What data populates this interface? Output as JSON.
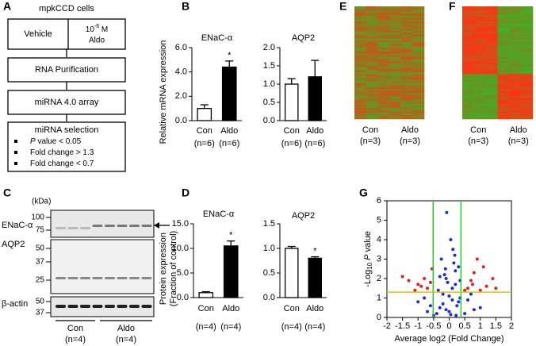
{
  "panels": [
    "A",
    "B",
    "C",
    "D",
    "E",
    "F",
    "G"
  ],
  "flowchart": {
    "title": "mpkCCD cells",
    "left": "Vehicle",
    "right_base": "10",
    "right_exp": "-6",
    "right_unit": " M",
    "right_line2": "Aldo",
    "step2": "RNA Purification",
    "step3": "miRNA 4.0 array",
    "step4": "miRNA selection",
    "bullets": [
      {
        "italic": "P",
        "text": " value < 0.05"
      },
      {
        "text": "Fold change > 1.3"
      },
      {
        "text": "Fold change < 0.7"
      }
    ]
  },
  "blot": {
    "unit": "(kDa)",
    "proteins": [
      "ENaC-α",
      "AQP2",
      "β-actin"
    ],
    "markers": [
      [
        "100",
        "75"
      ],
      [
        "50",
        "37",
        "25"
      ],
      [
        "50",
        "37"
      ]
    ],
    "groups": [
      "Con",
      "Aldo"
    ],
    "n_labels": [
      "(n=4)",
      "(n=4)"
    ]
  },
  "heatmaps": [
    {
      "categories": [
        "Con",
        "Aldo"
      ],
      "n_labels": [
        "(n=3)",
        "(n=3)"
      ]
    },
    {
      "categories": [
        "Con",
        "Aldo"
      ],
      "n_labels": [
        "(n=3)",
        "(n=3)"
      ]
    }
  ],
  "chart_data": [
    {
      "type": "bar",
      "title": "ENaC-α",
      "ylabel": "Relative mRNA expression",
      "categories": [
        "Con",
        "Aldo"
      ],
      "n_labels": [
        "(n=6)",
        "(n=6)"
      ],
      "values": [
        1.0,
        4.4
      ],
      "errors": [
        0.3,
        0.5
      ],
      "colors": [
        "#ffffff",
        "#000000"
      ],
      "significance": [
        {
          "index": 1,
          "label": "*"
        }
      ],
      "ylim": [
        0,
        6
      ],
      "yticks": [
        {
          "value": 0,
          "label": "0.0"
        },
        {
          "value": 2,
          "label": "2.0"
        },
        {
          "value": 4,
          "label": "4.0"
        },
        {
          "value": 6,
          "label": "6.0"
        }
      ]
    },
    {
      "type": "bar",
      "title": "AQP2",
      "categories": [
        "Con",
        "Aldo"
      ],
      "n_labels": [
        "(n=6)",
        "(n=6)"
      ],
      "values": [
        1.0,
        1.2
      ],
      "errors": [
        0.15,
        0.45
      ],
      "colors": [
        "#ffffff",
        "#000000"
      ],
      "ylim": [
        0,
        2
      ],
      "yticks": [
        {
          "value": 0,
          "label": "0.0"
        },
        {
          "value": 0.5,
          "label": "0.5"
        },
        {
          "value": 1,
          "label": "1.0"
        },
        {
          "value": 1.5,
          "label": "1.5"
        },
        {
          "value": 2,
          "label": "2.0"
        }
      ]
    },
    {
      "type": "bar",
      "title": "ENaC-α",
      "ylabel": "Protein expression",
      "ylabel_line2": "(Fraction of control)",
      "categories": [
        "Con",
        "Aldo"
      ],
      "n_labels": [
        "(n=4)",
        "(n=4)"
      ],
      "values": [
        1.0,
        10.5
      ],
      "errors": [
        0.2,
        1.0
      ],
      "colors": [
        "#ffffff",
        "#000000"
      ],
      "significance": [
        {
          "index": 1,
          "label": "*"
        }
      ],
      "ylim": [
        0,
        15
      ],
      "yticks": [
        {
          "value": 0,
          "label": "0.0"
        },
        {
          "value": 5,
          "label": "5.0"
        },
        {
          "value": 10,
          "label": "10.0"
        },
        {
          "value": 15,
          "label": "15.0"
        }
      ]
    },
    {
      "type": "bar",
      "title": "AQP2",
      "categories": [
        "Con",
        "Aldo"
      ],
      "n_labels": [
        "(n=4)",
        "(n=4)"
      ],
      "values": [
        1.0,
        0.8
      ],
      "errors": [
        0.04,
        0.03
      ],
      "colors": [
        "#ffffff",
        "#000000"
      ],
      "significance": [
        {
          "index": 1,
          "label": "*"
        }
      ],
      "ylim": [
        0,
        1.5
      ],
      "yticks": [
        {
          "value": 0,
          "label": "0.0"
        },
        {
          "value": 0.5,
          "label": "0.5"
        },
        {
          "value": 1,
          "label": "1.0"
        },
        {
          "value": 1.5,
          "label": "1.5"
        }
      ]
    },
    {
      "type": "scatter",
      "xlabel": "Average log2 (Fold Change)",
      "ylabel": {
        "prefix": "-Log",
        "sub": "10",
        "italic": "P",
        "suffix": " value"
      },
      "xlim": [
        -2,
        2
      ],
      "xticks": [
        -2,
        -1.5,
        -1,
        -0.5,
        0,
        0.5,
        1,
        1.5,
        2
      ],
      "ylim": [
        0,
        6
      ],
      "yticks": [
        0,
        1,
        2,
        3,
        4,
        5,
        6
      ],
      "vlines": [
        -0.515,
        0.379
      ],
      "vline_color": "#22cc22",
      "hline": 1.301,
      "hline_color": "#e0c000",
      "series": [
        {
          "color": "#1a2fcc",
          "x": [
            -0.3,
            -0.2,
            -0.1,
            0,
            0.1,
            0.2,
            0.3,
            -0.25,
            0.15,
            0.05,
            -0.05,
            0.25,
            -0.15,
            0.35,
            -0.35,
            0.1,
            -0.1,
            0.2,
            -0.2,
            0,
            0.3,
            -0.3,
            0.12,
            -0.12,
            0.35,
            -0.4,
            0.6,
            -0.6,
            0.8,
            -0.8,
            0.7,
            -0.7,
            1.0,
            -1.0,
            0.5,
            -0.5,
            0.05,
            -0.08,
            0.18,
            0.22
          ],
          "values": [
            0.5,
            1.2,
            2.0,
            0.3,
            1.5,
            2.4,
            0.8,
            3.0,
            2.8,
            4.0,
            1.8,
            0.6,
            2.2,
            1.0,
            1.4,
            0.9,
            0.4,
            1.7,
            0.7,
            1.1,
            2.6,
            2.1,
            3.5,
            2.5,
            1.9,
            0.2,
            0.9,
            0.6,
            0.4,
            1.0,
            1.2,
            0.3,
            0.5,
            0.8,
            0.2,
            0.1,
            0.15,
            5.4,
            3.2,
            0.1
          ]
        },
        {
          "color": "#e02020",
          "x": [
            -1.5,
            -1.3,
            -1.0,
            -0.9,
            -0.8,
            -0.7,
            -0.6,
            -1.1,
            0.6,
            0.7,
            0.8,
            1.0,
            1.2,
            1.4,
            1.5,
            0.9,
            0.5,
            -0.55,
            0.75,
            1.1
          ],
          "values": [
            2.1,
            1.9,
            1.7,
            1.6,
            2.0,
            1.5,
            1.8,
            1.4,
            1.5,
            1.9,
            2.3,
            1.4,
            1.6,
            2.0,
            1.5,
            3.0,
            1.4,
            2.5,
            1.7,
            2.6
          ]
        }
      ]
    }
  ]
}
